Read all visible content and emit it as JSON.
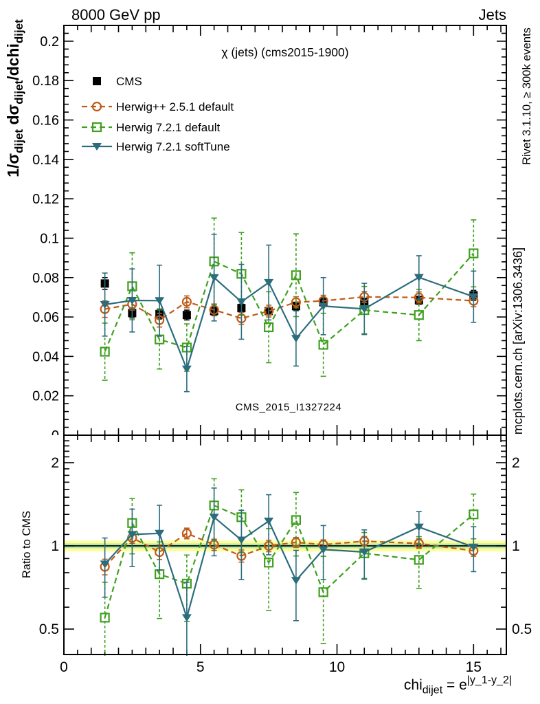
{
  "header": {
    "left": "8000 GeV pp",
    "right": "Jets"
  },
  "main_panel": {
    "title": "χ (jets) (cms2015-1900)",
    "watermark": "CMS_2015_I1327224",
    "ylabel_segments": [
      {
        "text": "1/σ",
        "style": "normal"
      },
      {
        "text": "dijet",
        "style": "sub"
      },
      {
        "text": " dσ",
        "style": "normal"
      },
      {
        "text": "dijet",
        "style": "sub"
      },
      {
        "text": "/dchi",
        "style": "normal"
      },
      {
        "text": "dijet",
        "style": "sub"
      }
    ]
  },
  "ratio_panel": {
    "ylabel": "Ratio to CMS"
  },
  "xaxis": {
    "label_segments": [
      {
        "text": "chi",
        "style": "normal"
      },
      {
        "text": "dijet",
        "style": "sub"
      },
      {
        "text": " = e",
        "style": "normal"
      },
      {
        "text": "|y_1-y_2|",
        "style": "sup"
      }
    ]
  },
  "side_labels": {
    "rivet": "Rivet 3.1.10, ≥ 300k events",
    "mcplots": "mcplots.cern.ch [arXiv:1306.3436]"
  },
  "colors": {
    "cms": "#000000",
    "herwigpp": "#bf5b17",
    "herwig7_default": "#3fa01e",
    "herwig7_softtune": "#2b6c7d",
    "band_outer": "#fdfd9e",
    "band_inner": "#b4e8a4",
    "watermark_gray": "#bdbdbd",
    "side_text_gray": "#8f8f8f"
  },
  "chart_data": {
    "type": "line",
    "title": "χ (jets) (cms2015-1900)",
    "xlabel": "chi_dijet = e^|y_1-y_2|",
    "ylabel": "1/σ_dijet dσ_dijet/dchi_dijet",
    "ylabel_ratio": "Ratio to CMS",
    "xlim": [
      0,
      16.2
    ],
    "ylim_main": [
      0,
      0.208
    ],
    "ylim_ratio": [
      0.4,
      2.49
    ],
    "ratio_scale": "log",
    "x_major_ticks": [
      0,
      5,
      10,
      15
    ],
    "y_major_step": 0.02,
    "y_minor_step": 0.004,
    "ratio_major_ticks": [
      0.5,
      1,
      2
    ],
    "reference_line": 1,
    "bands": [
      {
        "name": "outer-uncertainty-band",
        "color": "#fdfd9e",
        "lo": 0.955,
        "hi": 1.045
      },
      {
        "name": "inner-uncertainty-band",
        "color": "#b4e8a4",
        "lo": 0.98,
        "hi": 1.02
      }
    ],
    "x": [
      1.5,
      2.5,
      3.5,
      4.5,
      5.5,
      6.5,
      7.5,
      8.5,
      9.5,
      11,
      13,
      15
    ],
    "series": [
      {
        "key": "cms",
        "name": "CMS",
        "color": "#000000",
        "marker": "square-filled",
        "line": "none",
        "error_style": "solid",
        "values": [
          0.077,
          0.062,
          0.0615,
          0.061,
          0.063,
          0.0645,
          0.063,
          0.0655,
          0.0675,
          0.0675,
          0.0685,
          0.071
        ],
        "errors": [
          0.003,
          0.0025,
          0.0025,
          0.0025,
          0.002,
          0.002,
          0.002,
          0.002,
          0.002,
          0.002,
          0.002,
          0.0025
        ],
        "ratio": null
      },
      {
        "key": "herwigpp-default",
        "name": "Herwig++ 2.5.1 default",
        "color": "#bf5b17",
        "marker": "circle-open",
        "line": "dashed",
        "error_style": "solid",
        "values": [
          0.064,
          0.0665,
          0.0584,
          0.0677,
          0.0636,
          0.0593,
          0.063,
          0.0675,
          0.0682,
          0.0702,
          0.0699,
          0.0682
        ],
        "errors": [
          0.0042,
          0.003,
          0.0035,
          0.003,
          0.003,
          0.003,
          0.003,
          0.0028,
          0.0028,
          0.0028,
          0.0028,
          0.003
        ],
        "ratio": [
          0.84,
          1.07,
          0.95,
          1.11,
          1.01,
          0.92,
          1.0,
          1.03,
          1.01,
          1.04,
          1.02,
          0.96
        ]
      },
      {
        "key": "herwig7-default",
        "name": "Herwig 7.2.1 default",
        "color": "#3fa01e",
        "marker": "square-open",
        "line": "dashed",
        "error_style": "dashed",
        "values": [
          0.0424,
          0.0756,
          0.0486,
          0.0445,
          0.0882,
          0.0819,
          0.0548,
          0.0812,
          0.0459,
          0.0635,
          0.061,
          0.0923
        ],
        "errors": [
          0.0145,
          0.017,
          0.015,
          0.012,
          0.022,
          0.021,
          0.018,
          0.021,
          0.016,
          0.012,
          0.013,
          0.017
        ],
        "ratio": [
          0.55,
          1.21,
          0.79,
          0.73,
          1.4,
          1.27,
          0.87,
          1.24,
          0.68,
          0.94,
          0.89,
          1.3
        ]
      },
      {
        "key": "herwig7-softtune",
        "name": "Herwig 7.2.1 softTune",
        "color": "#2b6c7d",
        "marker": "triangle-down-filled",
        "line": "solid",
        "error_style": "solid",
        "values": [
          0.0663,
          0.0684,
          0.0683,
          0.0336,
          0.08,
          0.0677,
          0.0775,
          0.0491,
          0.0655,
          0.0641,
          0.0801,
          0.0703
        ],
        "errors": [
          0.016,
          0.016,
          0.018,
          0.0115,
          0.022,
          0.019,
          0.019,
          0.014,
          0.0145,
          0.013,
          0.011,
          0.013
        ],
        "ratio": [
          0.86,
          1.1,
          1.11,
          0.55,
          1.27,
          1.05,
          1.23,
          0.75,
          0.97,
          0.95,
          1.17,
          0.99
        ]
      }
    ]
  }
}
